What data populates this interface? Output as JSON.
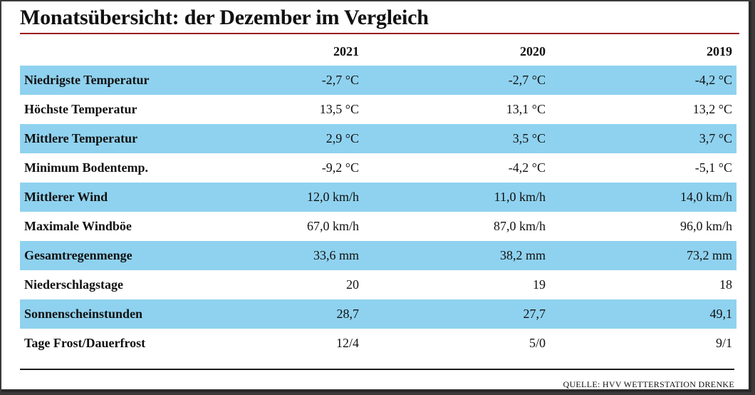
{
  "title": "Monatsübersicht: der Dezember im Vergleich",
  "columns": [
    "2021",
    "2020",
    "2019"
  ],
  "rows": [
    {
      "label": "Niedrigste Temperatur",
      "values": [
        "-2,7 °C",
        "-2,7 °C",
        "-4,2 °C"
      ]
    },
    {
      "label": "Höchste Temperatur",
      "values": [
        "13,5 °C",
        "13,1 °C",
        "13,2 °C"
      ]
    },
    {
      "label": "Mittlere Temperatur",
      "values": [
        "2,9 °C",
        "3,5 °C",
        "3,7 °C"
      ]
    },
    {
      "label": "Minimum Bodentemp.",
      "values": [
        "-9,2 °C",
        "-4,2 °C",
        "-5,1 °C"
      ]
    },
    {
      "label": "Mittlerer Wind",
      "values": [
        "12,0 km/h",
        "11,0 km/h",
        "14,0 km/h"
      ]
    },
    {
      "label": "Maximale Windböe",
      "values": [
        "67,0 km/h",
        "87,0 km/h",
        "96,0 km/h"
      ]
    },
    {
      "label": "Gesamtregenmenge",
      "values": [
        "33,6 mm",
        "38,2 mm",
        "73,2 mm"
      ]
    },
    {
      "label": "Niederschlagstage",
      "values": [
        "20",
        "19",
        "18"
      ]
    },
    {
      "label": "Sonnenscheinstunden",
      "values": [
        "28,7",
        "27,7",
        "49,1"
      ]
    },
    {
      "label": "Tage Frost/Dauerfrost",
      "values": [
        "12/4",
        "5/0",
        "9/1"
      ]
    }
  ],
  "source": "QUELLE: HVV WETTERSTATION DRENKE",
  "colors": {
    "stripe": "#8fd2ef",
    "title_rule": "#9b1c1c"
  }
}
